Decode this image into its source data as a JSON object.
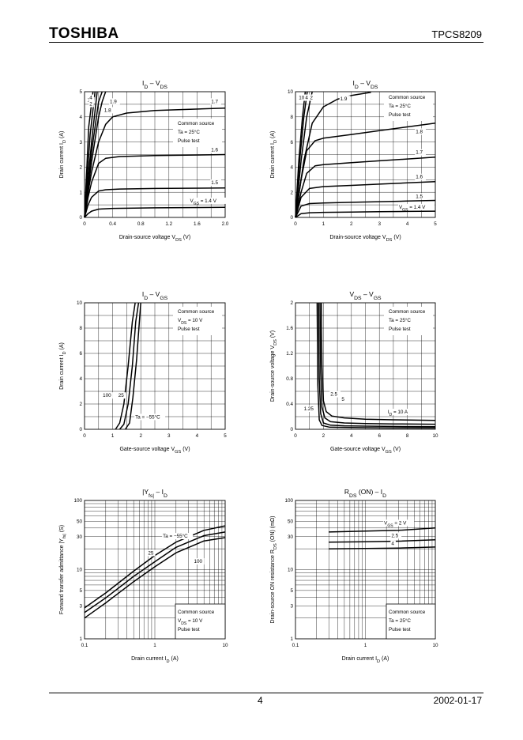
{
  "header": {
    "logo": "TOSHIBA",
    "part_number": "TPCS8209"
  },
  "footer": {
    "page": "4",
    "date": "2002-01-17"
  },
  "chart_data": [
    {
      "id": "c1",
      "type": "line",
      "title": "I_D – V_DS",
      "xlabel": "Drain-source voltage  V_DS  (V)",
      "ylabel": "Drain current  I_D  (A)",
      "xlim": [
        0,
        2
      ],
      "ylim": [
        0,
        5
      ],
      "grid": true,
      "xticks": [
        "0",
        "0.4",
        "0.8",
        "1.2",
        "1.6",
        "2.0"
      ],
      "yticks": [
        "0",
        "1",
        "2",
        "3",
        "4",
        "5"
      ],
      "annotation": [
        "Common source",
        "Ta = 25°C",
        "Pulse test"
      ],
      "series": [
        {
          "name": "V_GS = 1.4 V",
          "x": [
            0,
            0.05,
            0.1,
            0.2,
            0.4,
            1.0,
            2.0
          ],
          "y": [
            0,
            0.15,
            0.25,
            0.33,
            0.36,
            0.38,
            0.4
          ]
        },
        {
          "name": "1.5",
          "x": [
            0,
            0.05,
            0.1,
            0.2,
            0.3,
            0.5,
            1.0,
            2.0
          ],
          "y": [
            0,
            0.5,
            0.8,
            1.05,
            1.1,
            1.13,
            1.15,
            1.17
          ]
        },
        {
          "name": "1.6",
          "x": [
            0,
            0.05,
            0.1,
            0.2,
            0.3,
            0.5,
            1.0,
            2.0
          ],
          "y": [
            0,
            0.8,
            1.4,
            2.15,
            2.35,
            2.42,
            2.46,
            2.5
          ]
        },
        {
          "name": "1.7",
          "x": [
            0,
            0.05,
            0.1,
            0.2,
            0.3,
            0.4,
            0.6,
            1.0,
            2.0
          ],
          "y": [
            0,
            1.0,
            1.8,
            3.0,
            3.7,
            4.0,
            4.15,
            4.25,
            4.35
          ]
        },
        {
          "name": "1.8",
          "x": [
            0,
            0.1,
            0.2,
            0.25,
            0.3
          ],
          "y": [
            0,
            2.2,
            4.0,
            4.6,
            5.0
          ]
        },
        {
          "name": "1.9",
          "x": [
            0,
            0.1,
            0.2,
            0.25
          ],
          "y": [
            0,
            2.6,
            4.6,
            5.0
          ]
        },
        {
          "name": "2",
          "x": [
            0,
            0.1,
            0.18
          ],
          "y": [
            0,
            3.0,
            5.0
          ]
        },
        {
          "name": "4",
          "x": [
            0,
            0.08,
            0.15
          ],
          "y": [
            0,
            3.3,
            5.0
          ]
        },
        {
          "name": "10",
          "x": [
            0,
            0.06,
            0.12
          ],
          "y": [
            0,
            3.6,
            5.0
          ]
        }
      ],
      "labels": [
        {
          "text": "10",
          "x": 0.04,
          "y": 4.6
        },
        {
          "text": "4",
          "x": 0.07,
          "y": 4.7
        },
        {
          "text": "2",
          "x": 0.07,
          "y": 4.45
        },
        {
          "text": "1.9",
          "x": 0.36,
          "y": 4.55
        },
        {
          "text": "1.8",
          "x": 0.28,
          "y": 4.2
        },
        {
          "text": "1.7",
          "x": 1.8,
          "y": 4.55
        },
        {
          "text": "1.6",
          "x": 1.8,
          "y": 2.62
        },
        {
          "text": "1.5",
          "x": 1.8,
          "y": 1.32
        },
        {
          "text": "V_GS = 1.4 V",
          "x": 1.5,
          "y": 0.6
        }
      ]
    },
    {
      "id": "c2",
      "type": "line",
      "title": "I_D – V_DS",
      "xlabel": "Drain-source voltage  V_DS  (V)",
      "ylabel": "Drain current  I_D  (A)",
      "xlim": [
        0,
        5
      ],
      "ylim": [
        0,
        10
      ],
      "grid": true,
      "xticks": [
        "0",
        "1",
        "2",
        "3",
        "4",
        "5"
      ],
      "yticks": [
        "0",
        "2",
        "4",
        "6",
        "8",
        "10"
      ],
      "annotation": [
        "Common source",
        "Ta = 25°C",
        "Pulse test"
      ],
      "series": [
        {
          "name": "V_GS = 1.4 V",
          "x": [
            0,
            0.2,
            0.5,
            1,
            2,
            3,
            4,
            5
          ],
          "y": [
            0,
            0.3,
            0.37,
            0.4,
            0.42,
            0.45,
            0.48,
            0.5
          ]
        },
        {
          "name": "1.5",
          "x": [
            0,
            0.2,
            0.5,
            1,
            2,
            3,
            4,
            5
          ],
          "y": [
            0,
            0.9,
            1.1,
            1.15,
            1.2,
            1.25,
            1.3,
            1.35
          ]
        },
        {
          "name": "1.6",
          "x": [
            0,
            0.2,
            0.5,
            1,
            2,
            3,
            4,
            5
          ],
          "y": [
            0,
            1.6,
            2.3,
            2.45,
            2.55,
            2.65,
            2.75,
            2.85
          ]
        },
        {
          "name": "1.7",
          "x": [
            0,
            0.2,
            0.4,
            0.7,
            1,
            2,
            3,
            4,
            5
          ],
          "y": [
            0,
            2.0,
            3.5,
            4.1,
            4.2,
            4.35,
            4.5,
            4.65,
            4.8
          ]
        },
        {
          "name": "1.8",
          "x": [
            0,
            0.2,
            0.4,
            0.7,
            1,
            2,
            3,
            4,
            5
          ],
          "y": [
            0,
            3.0,
            5.3,
            6.1,
            6.3,
            6.6,
            6.9,
            7.2,
            7.5
          ]
        },
        {
          "name": "1.9",
          "x": [
            0,
            0.3,
            0.6,
            1,
            1.5,
            2,
            2.7
          ],
          "y": [
            0,
            4.5,
            7.5,
            8.8,
            9.4,
            9.7,
            9.95
          ]
        },
        {
          "name": "2",
          "x": [
            0,
            0.2,
            0.4,
            0.6
          ],
          "y": [
            0,
            4.5,
            8.0,
            10.0
          ]
        },
        {
          "name": "4",
          "x": [
            0,
            0.15,
            0.3,
            0.42
          ],
          "y": [
            0,
            4.5,
            8.0,
            10.0
          ]
        },
        {
          "name": "10",
          "x": [
            0,
            0.12,
            0.25,
            0.35
          ],
          "y": [
            0,
            4.5,
            8.0,
            10.0
          ]
        }
      ],
      "labels": [
        {
          "text": "10",
          "x": 0.12,
          "y": 9.4
        },
        {
          "text": "4",
          "x": 0.35,
          "y": 9.4
        },
        {
          "text": "2",
          "x": 0.52,
          "y": 9.4
        },
        {
          "text": "1.9",
          "x": 1.6,
          "y": 9.3
        },
        {
          "text": "1.8",
          "x": 4.3,
          "y": 6.7
        },
        {
          "text": "1.7",
          "x": 4.3,
          "y": 5.05
        },
        {
          "text": "1.6",
          "x": 4.3,
          "y": 3.1
        },
        {
          "text": "1.5",
          "x": 4.3,
          "y": 1.55
        },
        {
          "text": "V_GS = 1.4 V",
          "x": 3.7,
          "y": 0.7
        }
      ]
    },
    {
      "id": "c3",
      "type": "line",
      "title": "I_D – V_GS",
      "xlabel": "Gate-source voltage  V_GS  (V)",
      "ylabel": "Drain current  I_D  (A)",
      "xlim": [
        0,
        5
      ],
      "ylim": [
        0,
        10
      ],
      "grid": true,
      "xticks": [
        "0",
        "1",
        "2",
        "3",
        "4",
        "5"
      ],
      "yticks": [
        "0",
        "2",
        "4",
        "6",
        "8",
        "10"
      ],
      "annotation": [
        "Common source",
        "V_DS = 10 V",
        "Pulse test"
      ],
      "series": [
        {
          "name": "100",
          "x": [
            1.1,
            1.25,
            1.4,
            1.55,
            1.7,
            1.8
          ],
          "y": [
            0,
            0.5,
            2.0,
            5.0,
            8.5,
            10
          ]
        },
        {
          "name": "25",
          "x": [
            1.25,
            1.4,
            1.55,
            1.7,
            1.82,
            1.92
          ],
          "y": [
            0,
            0.4,
            2.0,
            5.0,
            8.5,
            10
          ]
        },
        {
          "name": "Ta = −55°C",
          "x": [
            1.45,
            1.6,
            1.72,
            1.85,
            1.95,
            2.0
          ],
          "y": [
            0,
            0.5,
            2.5,
            5.5,
            8.5,
            10
          ]
        }
      ],
      "labels": [
        {
          "text": "100",
          "x": 0.65,
          "y": 2.55
        },
        {
          "text": "25",
          "x": 1.2,
          "y": 2.55
        },
        {
          "text": "Ta = −55°C",
          "x": 1.8,
          "y": 0.85
        }
      ]
    },
    {
      "id": "c4",
      "type": "line",
      "title": "V_DS – V_GS",
      "xlabel": "Gate-source voltage  V_GS  (V)",
      "ylabel": "Drain-source voltage  V_DS  (V)",
      "xlim": [
        0,
        10
      ],
      "ylim": [
        0,
        2
      ],
      "grid": true,
      "xticks": [
        "0",
        "2",
        "4",
        "6",
        "8",
        "10"
      ],
      "yticks": [
        "0",
        "0.4",
        "0.8",
        "1.2",
        "1.6",
        "2"
      ],
      "annotation": [
        "Common source",
        "Ta = 25°C",
        "Pulse test"
      ],
      "series": [
        {
          "name": "I_D = 10 A",
          "x": [
            1.85,
            1.9,
            2.0,
            2.2,
            2.6,
            3.5,
            5,
            7,
            10
          ],
          "y": [
            2.0,
            1.0,
            0.45,
            0.28,
            0.21,
            0.18,
            0.16,
            0.15,
            0.14
          ]
        },
        {
          "name": "5",
          "x": [
            1.75,
            1.8,
            1.9,
            2.1,
            2.5,
            3.5,
            5,
            7,
            10
          ],
          "y": [
            2.0,
            0.9,
            0.35,
            0.18,
            0.12,
            0.1,
            0.09,
            0.085,
            0.08
          ]
        },
        {
          "name": "2.5",
          "x": [
            1.65,
            1.7,
            1.8,
            2.0,
            2.5,
            3.5,
            5,
            7,
            10
          ],
          "y": [
            2.0,
            0.8,
            0.25,
            0.1,
            0.065,
            0.055,
            0.05,
            0.045,
            0.04
          ]
        },
        {
          "name": "1.25",
          "x": [
            1.55,
            1.6,
            1.7,
            1.9,
            2.4,
            3.5,
            5,
            7,
            10
          ],
          "y": [
            2.0,
            0.7,
            0.15,
            0.06,
            0.035,
            0.03,
            0.025,
            0.022,
            0.02
          ]
        }
      ],
      "labels": [
        {
          "text": "1.25",
          "x": 0.6,
          "y": 0.3
        },
        {
          "text": "2.5",
          "x": 2.5,
          "y": 0.53
        },
        {
          "text": "5",
          "x": 3.3,
          "y": 0.45
        },
        {
          "text": "I_D = 10 A",
          "x": 6.6,
          "y": 0.25
        }
      ]
    },
    {
      "id": "c5",
      "type": "line",
      "title": "|Y_fs| – I_D",
      "xlabel": "Drain current  I_D  (A)",
      "ylabel": "Forward transfer admittance  |Y_fs|  (S)",
      "xscale": "log",
      "yscale": "log",
      "xlim": [
        0.1,
        10
      ],
      "ylim": [
        1,
        100
      ],
      "grid": true,
      "xticks": [
        "0.1",
        "1",
        "10"
      ],
      "yticks": [
        "1",
        "3",
        "5",
        "10",
        "30",
        "50",
        "100"
      ],
      "annotation": [
        "Common source",
        "V_DS = 10 V",
        "Pulse test"
      ],
      "series": [
        {
          "name": "Ta = −55°C",
          "x": [
            0.1,
            0.2,
            0.5,
            1,
            2,
            5,
            10
          ],
          "y": [
            2.8,
            4.6,
            9.5,
            16,
            25,
            37,
            43
          ]
        },
        {
          "name": "25",
          "x": [
            0.1,
            0.2,
            0.5,
            1,
            2,
            5,
            10
          ],
          "y": [
            2.4,
            3.9,
            8,
            13,
            21,
            31,
            35
          ]
        },
        {
          "name": "100",
          "x": [
            0.1,
            0.2,
            0.5,
            1,
            2,
            5,
            10
          ],
          "y": [
            2.0,
            3.3,
            6.7,
            11,
            17.5,
            26,
            29
          ]
        }
      ],
      "labels": [
        {
          "text": "Ta = −55°C",
          "x": 1.3,
          "y": 29
        },
        {
          "text": "25",
          "x": 0.8,
          "y": 16.5
        },
        {
          "text": "100",
          "x": 3.6,
          "y": 12.5
        }
      ]
    },
    {
      "id": "c6",
      "type": "line",
      "title": "R_DS (ON) – I_D",
      "xlabel": "Drain current  I_D  (A)",
      "ylabel": "Drain-source ON resistance  R_DS (ON)  (mΩ)",
      "xscale": "log",
      "yscale": "log",
      "xlim": [
        0.1,
        10
      ],
      "ylim": [
        1,
        100
      ],
      "grid": true,
      "xticks": [
        "0.1",
        "1",
        "10"
      ],
      "yticks": [
        "1",
        "3",
        "5",
        "10",
        "30",
        "50",
        "100"
      ],
      "annotation": [
        "Common source",
        "Ta = 25°C",
        "Pulse test"
      ],
      "series": [
        {
          "name": "V_GS = 2 V",
          "x": [
            0.3,
            1,
            3,
            10
          ],
          "y": [
            35,
            36,
            37,
            40
          ]
        },
        {
          "name": "2.5",
          "x": [
            0.3,
            1,
            3,
            10
          ],
          "y": [
            25,
            25.3,
            25.8,
            27
          ]
        },
        {
          "name": "4",
          "x": [
            0.3,
            1,
            3,
            10
          ],
          "y": [
            20,
            20.2,
            20.5,
            21.2
          ]
        }
      ],
      "labels": [
        {
          "text": "V_GS = 2 V",
          "x": 1.85,
          "y": 45
        },
        {
          "text": "2.5",
          "x": 2.35,
          "y": 29.5
        },
        {
          "text": "4",
          "x": 2.35,
          "y": 22.5
        }
      ]
    }
  ]
}
